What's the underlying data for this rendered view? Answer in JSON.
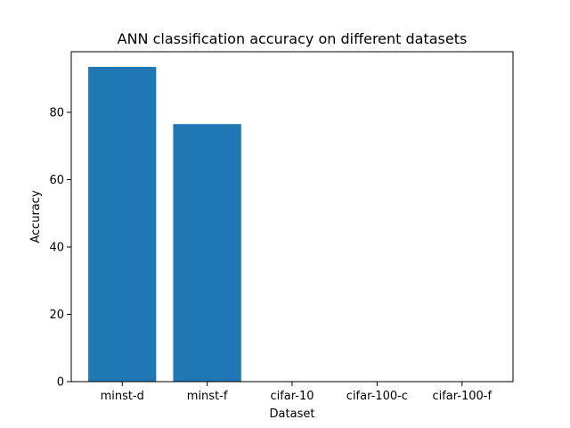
{
  "chart_data": {
    "type": "bar",
    "title": "ANN classification accuracy on different datasets",
    "xlabel": "Dataset",
    "ylabel": "Accuracy",
    "categories": [
      "minst-d",
      "minst-f",
      "cifar-10",
      "cifar-100-c",
      "cifar-100-f"
    ],
    "values": [
      93.5,
      76.5,
      0,
      0,
      0
    ],
    "ylim": [
      0,
      98
    ],
    "yticks": [
      0,
      20,
      40,
      60,
      80
    ],
    "grid": false,
    "bar_color": "#1f77b4"
  }
}
